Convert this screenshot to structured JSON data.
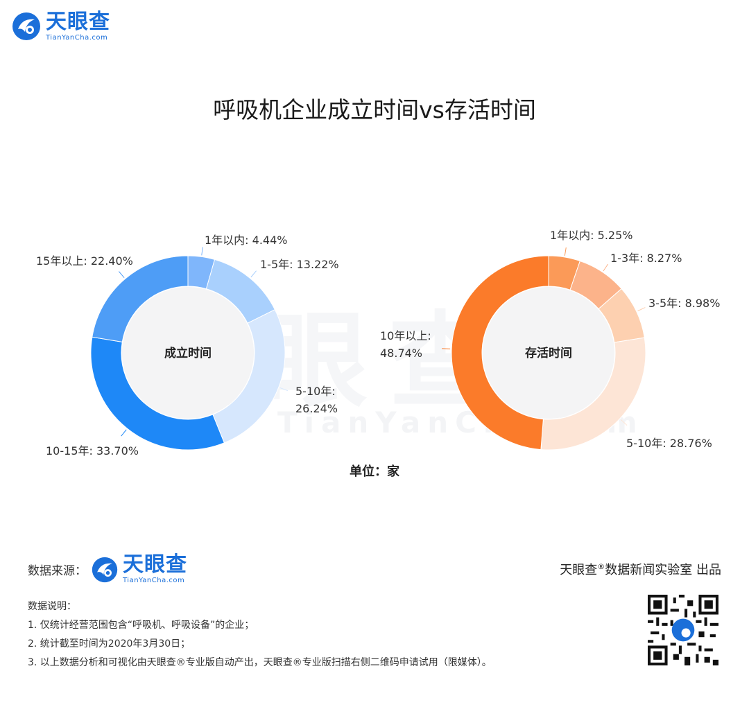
{
  "brand": {
    "name": "天眼查",
    "domain": "TianYanCha.com",
    "color": "#1b6fd9"
  },
  "title": "呼吸机企业成立时间vs存活时间",
  "unit_label": "单位：家",
  "source_label": "数据来源：",
  "producer": {
    "prefix": "天眼查",
    "reg": "®",
    "suffix": "数据新闻实验室 出品"
  },
  "notes": {
    "heading": "数据说明：",
    "items": [
      "1. 仅统计经营范围包含“呼吸机、呼吸设备”的企业；",
      "2. 统计截至时间为2020年3月30日；",
      "3. 以上数据分析和可视化由天眼查®专业版自动产出，天眼查®专业版扫描右侧二维码申请试用（限媒体）。"
    ]
  },
  "chart_data": [
    {
      "type": "pie",
      "title": "成立时间",
      "categories": [
        "1年以内",
        "1-5年",
        "5-10年",
        "10-15年",
        "15年以上"
      ],
      "values": [
        4.44,
        13.22,
        26.24,
        33.7,
        22.4
      ],
      "labels": [
        "1年以内: 4.44%",
        "1-5年: 13.22%",
        "5-10年:",
        "10-15年: 33.70%",
        "15年以上: 22.40%"
      ],
      "labels_line2": [
        "",
        "",
        "26.24%",
        "",
        ""
      ],
      "colors": [
        "#7fb6fb",
        "#a9d0fd",
        "#d6e7fd",
        "#1e88f7",
        "#4e9df6"
      ],
      "donut": true
    },
    {
      "type": "pie",
      "title": "存活时间",
      "categories": [
        "1年以内",
        "1-3年",
        "3-5年",
        "5-10年",
        "10年以上"
      ],
      "values": [
        5.25,
        8.27,
        8.98,
        28.76,
        48.74
      ],
      "labels": [
        "1年以内: 5.25%",
        "1-3年: 8.27%",
        "3-5年: 8.98%",
        "5-10年: 28.76%",
        "10年以上:"
      ],
      "labels_line2": [
        "",
        "",
        "",
        "",
        "48.74%"
      ],
      "colors": [
        "#fb9a58",
        "#fcb38a",
        "#fdd0b0",
        "#fde5d6",
        "#fb7b2a"
      ],
      "donut": true
    }
  ]
}
